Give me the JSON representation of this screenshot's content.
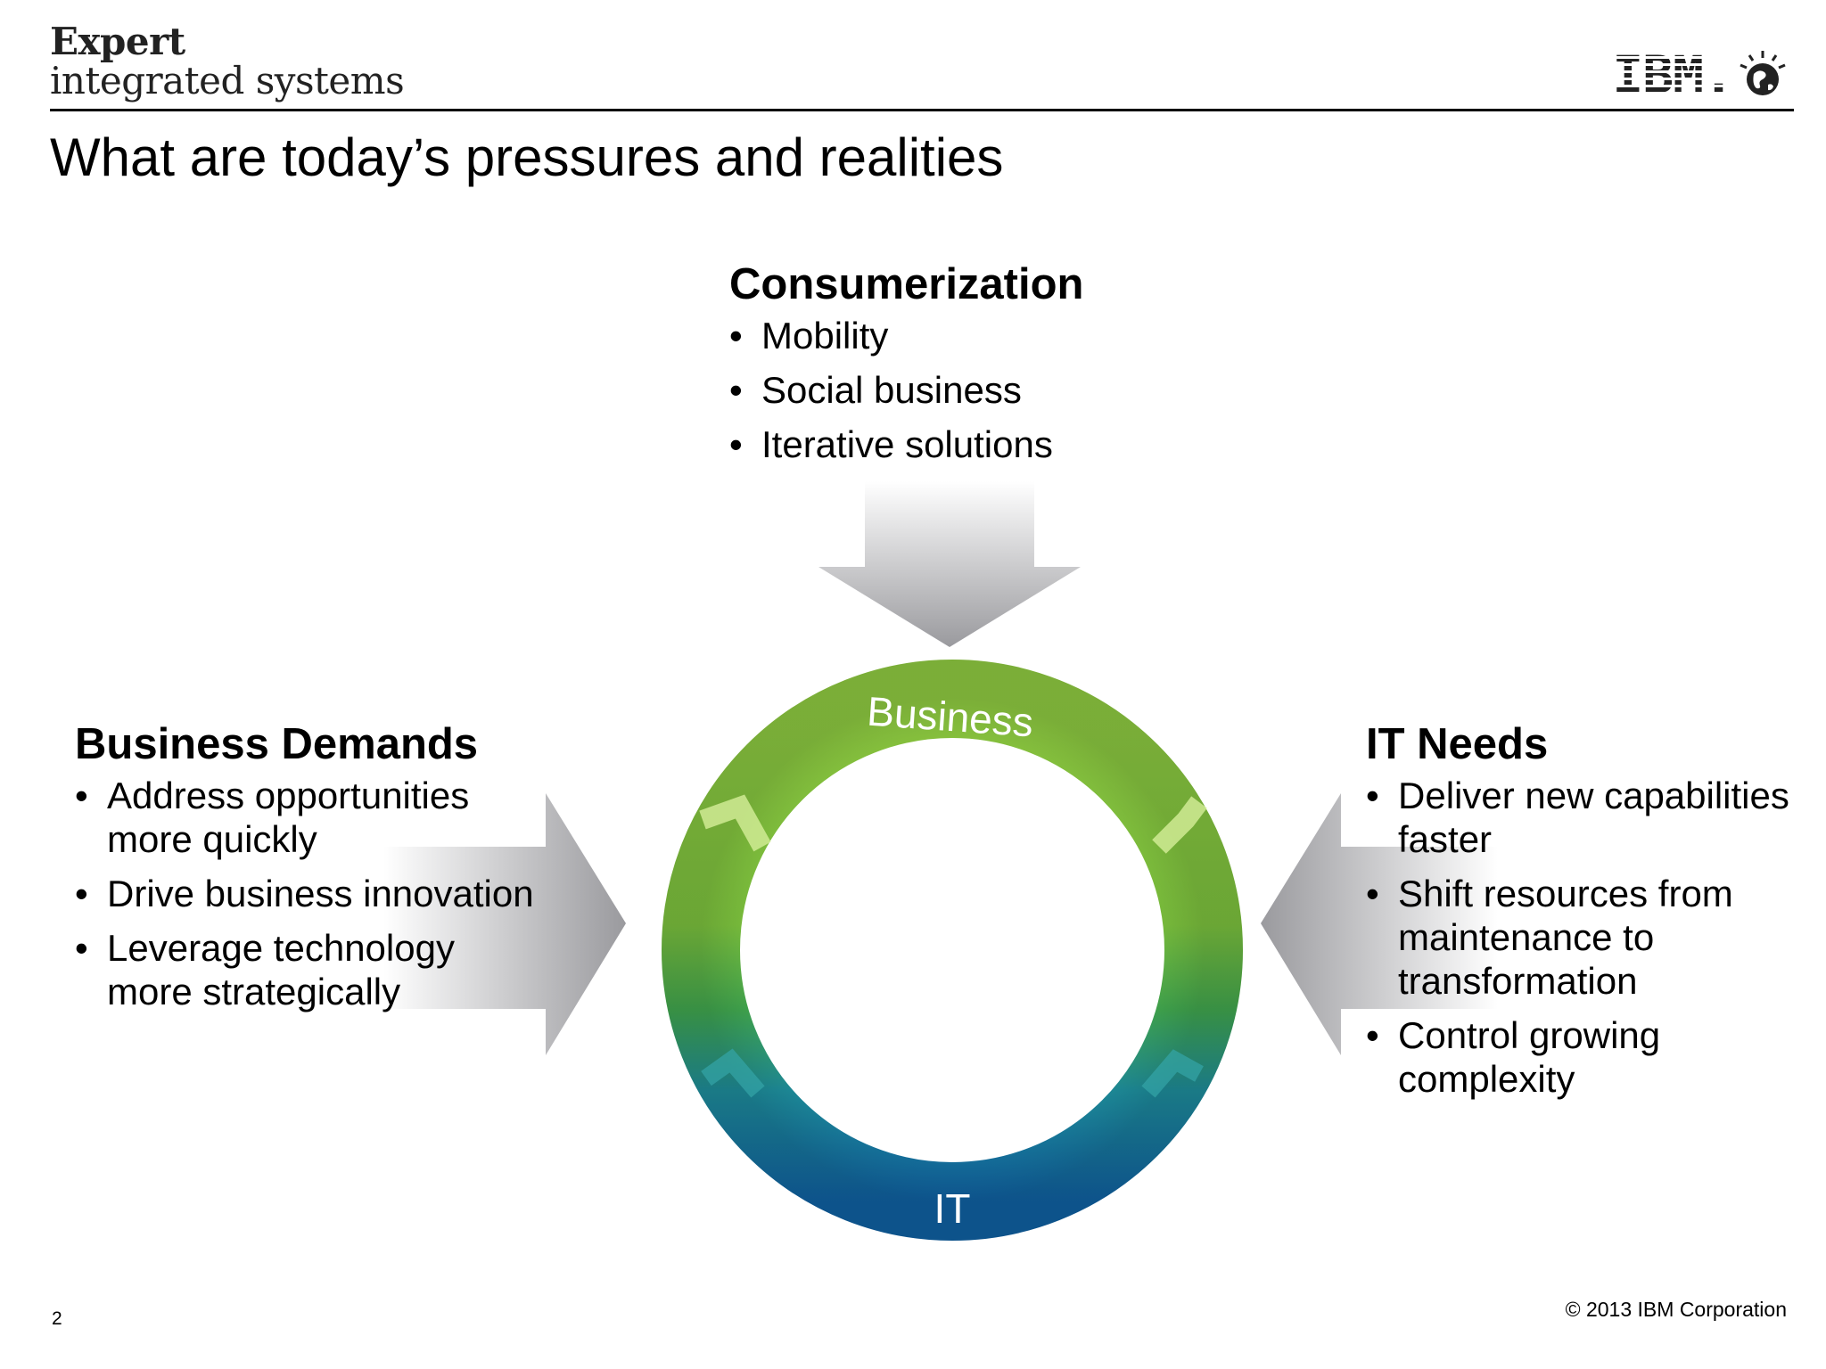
{
  "header": {
    "brand_line1": "Expert",
    "brand_line2": "integrated systems",
    "logo_text": "IBM.",
    "title": "What are today’s pressures and realities"
  },
  "diagram": {
    "ring_top_label": "Business",
    "ring_bottom_label": "IT",
    "top": {
      "heading": "Consumerization",
      "items": [
        "Mobility",
        "Social business",
        "Iterative solutions"
      ]
    },
    "left": {
      "heading": "Business Demands",
      "items": [
        "Address opportunities more quickly",
        "Drive business innovation",
        "Leverage technology more strategically"
      ]
    },
    "right": {
      "heading": "IT Needs",
      "items": [
        "Deliver new capabilities faster",
        "Shift resources from maintenance to transformation",
        "Control growing complexity"
      ]
    },
    "colors": {
      "business_green": "#8cc63f",
      "it_blue": "#1369a6",
      "arrow_gray": "#a7a7ab"
    }
  },
  "footer": {
    "page_number": "2",
    "copyright": "© 2013 IBM Corporation"
  }
}
